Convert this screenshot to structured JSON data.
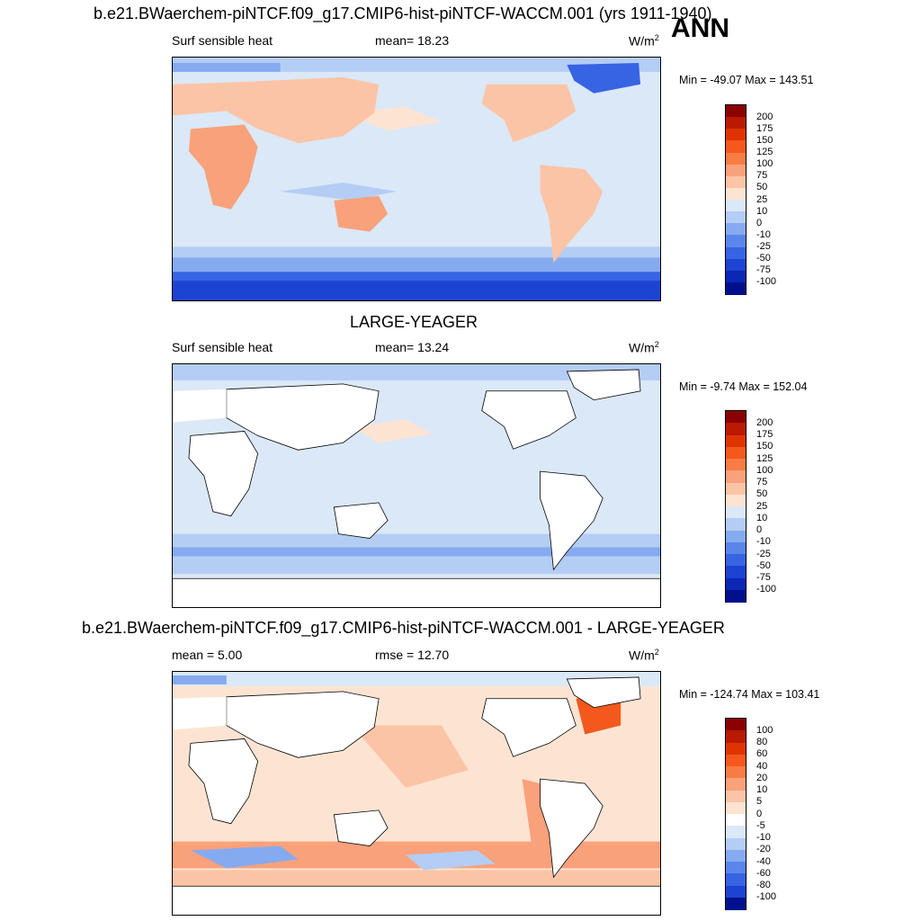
{
  "figure": {
    "ann_label": "ANN",
    "panels": [
      {
        "title": "b.e21.BWaerchem-piNTCF.f09_g17.CMIP6-hist-piNTCF-WACCM.001 (yrs 1911-1940)",
        "left_label": "Surf sensible heat",
        "center_label": "mean=  18.23",
        "units_base": "W/m",
        "units_exp": "2",
        "minmax": "Min = -49.07 Max = 143.51",
        "colorbar": {
          "labels": [
            "200",
            "175",
            "150",
            "125",
            "100",
            "75",
            "50",
            "25",
            "10",
            "0",
            "-10",
            "-25",
            "-50",
            "-75",
            "-100"
          ],
          "colors": [
            "#8b0000",
            "#b91a00",
            "#e03400",
            "#f5581d",
            "#f77c43",
            "#f9a17a",
            "#fcc4a6",
            "#fde4d2",
            "#dbe8f7",
            "#b4cdf4",
            "#86aaf0",
            "#5a86ec",
            "#3764e3",
            "#1c43d2",
            "#0a27b5",
            "#00108c"
          ]
        }
      },
      {
        "title": "LARGE-YEAGER",
        "left_label": "Surf sensible heat",
        "center_label": "mean=  13.24",
        "units_base": "W/m",
        "units_exp": "2",
        "minmax": "Min =  -9.74 Max = 152.04",
        "colorbar": {
          "labels": [
            "200",
            "175",
            "150",
            "125",
            "100",
            "75",
            "50",
            "25",
            "10",
            "0",
            "-10",
            "-25",
            "-50",
            "-75",
            "-100"
          ],
          "colors": [
            "#8b0000",
            "#b91a00",
            "#e03400",
            "#f5581d",
            "#f77c43",
            "#f9a17a",
            "#fcc4a6",
            "#fde4d2",
            "#dbe8f7",
            "#b4cdf4",
            "#86aaf0",
            "#5a86ec",
            "#3764e3",
            "#1c43d2",
            "#0a27b5",
            "#00108c"
          ]
        }
      },
      {
        "title": "b.e21.BWaerchem-piNTCF.f09_g17.CMIP6-hist-piNTCF-WACCM.001 - LARGE-YEAGER",
        "left_label": "mean =   5.00",
        "center_label": "rmse =  12.70",
        "units_base": "W/m",
        "units_exp": "2",
        "minmax": "Min = -124.74 Max = 103.41",
        "colorbar": {
          "labels": [
            "100",
            "80",
            "60",
            "40",
            "20",
            "10",
            "5",
            "0",
            "-5",
            "-10",
            "-20",
            "-40",
            "-60",
            "-80",
            "-100"
          ],
          "colors": [
            "#8b0000",
            "#b91a00",
            "#e03400",
            "#f5581d",
            "#f77c43",
            "#f9a17a",
            "#fcc4a6",
            "#fde4d2",
            "#ffffff",
            "#dbe8f7",
            "#b4cdf4",
            "#86aaf0",
            "#5a86ec",
            "#3764e3",
            "#1c43d2",
            "#00108c"
          ]
        }
      }
    ]
  }
}
